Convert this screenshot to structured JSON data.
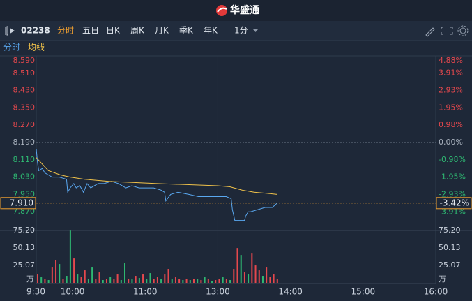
{
  "header": {
    "logo": "华盛通"
  },
  "toolbar": {
    "code": "02238",
    "tabs": [
      "分时",
      "五日",
      "日K",
      "周K",
      "月K",
      "季K",
      "年K"
    ],
    "interval": "1分"
  },
  "chart_data": [
    {
      "type": "line",
      "series": [
        {
          "name": "分时",
          "color": "#5aa8f0",
          "x": [
            0,
            1,
            2,
            5,
            7,
            10,
            13,
            19,
            25,
            26,
            28,
            31,
            33,
            36,
            39,
            42,
            45,
            51,
            56,
            62,
            68,
            74,
            79,
            85,
            91,
            97,
            103,
            106,
            107,
            111,
            117,
            126,
            134,
            143,
            149,
            152,
            157,
            161,
            162,
            164,
            169,
            172,
            173,
            175,
            177,
            183,
            189,
            195,
            199
          ],
          "values": [
            8.16,
            8.1,
            8.06,
            8.07,
            8.05,
            8.04,
            8.03,
            8.03,
            8.02,
            7.96,
            7.98,
            8.0,
            7.98,
            7.99,
            7.96,
            8.0,
            7.98,
            8.0,
            8.0,
            8.01,
            8.0,
            7.98,
            7.99,
            7.98,
            7.98,
            7.98,
            7.97,
            7.96,
            7.92,
            7.95,
            7.96,
            7.95,
            7.94,
            7.94,
            7.94,
            7.94,
            7.94,
            7.93,
            7.88,
            7.83,
            7.83,
            7.83,
            7.85,
            7.87,
            7.87,
            7.88,
            7.89,
            7.89,
            7.91
          ]
        },
        {
          "name": "均线",
          "color": "#f0c24a",
          "x": [
            0,
            5,
            10,
            20,
            28,
            40,
            60,
            100,
            150,
            160,
            170,
            180,
            190,
            199
          ],
          "values": [
            8.12,
            8.09,
            8.06,
            8.04,
            8.03,
            8.02,
            8.01,
            8.0,
            7.99,
            7.985,
            7.97,
            7.96,
            7.955,
            7.95
          ]
        }
      ],
      "xlim": [
        0,
        330
      ],
      "ylim": [
        7.79,
        8.59
      ],
      "yticks": [
        {
          "value": 8.59,
          "label": "8.590"
        },
        {
          "value": 8.51,
          "label": "8.510"
        },
        {
          "value": 8.43,
          "label": "8.430"
        },
        {
          "value": 8.35,
          "label": "8.350"
        },
        {
          "value": 8.27,
          "label": "8.270"
        },
        {
          "value": 8.19,
          "label": "8.190"
        },
        {
          "value": 8.11,
          "label": "8.110"
        },
        {
          "value": 8.03,
          "label": "8.030"
        },
        {
          "value": 7.95,
          "label": "7.950"
        },
        {
          "value": 7.87,
          "label": "7.870"
        }
      ],
      "y2lim": [
        -4.88,
        4.88
      ],
      "y2ticks": [
        {
          "value": 4.88,
          "label": "4.88%"
        },
        {
          "value": 3.91,
          "label": "3.91%"
        },
        {
          "value": 2.93,
          "label": "2.93%"
        },
        {
          "value": 1.95,
          "label": "1.95%"
        },
        {
          "value": 0.98,
          "label": "0.98%"
        },
        {
          "value": 0,
          "label": "0.00%"
        },
        {
          "value": -0.98,
          "label": "-0.98%"
        },
        {
          "value": -1.95,
          "label": "-1.95%"
        },
        {
          "value": -2.93,
          "label": "-2.93%"
        },
        {
          "value": -3.91,
          "label": "-3.91%"
        }
      ],
      "current": {
        "price": {
          "value": 7.91,
          "label": "7.910"
        },
        "change": {
          "value": -3.42,
          "label": "-3.42%"
        }
      }
    },
    {
      "type": "bar",
      "unit": "万",
      "x": [
        0,
        3,
        6,
        9,
        12,
        15,
        18,
        21,
        24,
        27,
        30,
        33,
        36,
        39,
        42,
        45,
        48,
        51,
        54,
        57,
        60,
        63,
        66,
        69,
        72,
        75,
        78,
        81,
        84,
        87,
        90,
        93,
        96,
        99,
        102,
        105,
        108,
        111,
        114,
        117,
        120,
        123,
        126,
        129,
        132,
        135,
        138,
        141,
        144,
        147,
        150,
        153,
        156,
        159,
        162,
        165,
        168,
        171,
        174,
        177,
        180,
        183,
        186,
        189,
        192,
        195,
        198
      ],
      "values": [
        12,
        8,
        5,
        4,
        22,
        33,
        27,
        6,
        10,
        75,
        35,
        12,
        8,
        18,
        6,
        22,
        5,
        15,
        4,
        6,
        8,
        5,
        12,
        4,
        29,
        6,
        5,
        10,
        7,
        12,
        5,
        14,
        6,
        8,
        5,
        12,
        20,
        6,
        8,
        5,
        4,
        6,
        4,
        5,
        6,
        4,
        8,
        5,
        3,
        4,
        6,
        8,
        5,
        4,
        20,
        50,
        40,
        15,
        12,
        43,
        25,
        18,
        10,
        22,
        8,
        12,
        6
      ],
      "colors": [
        "#e5484d",
        "#2eb872",
        "#e5484d",
        "#2eb872",
        "#e5484d",
        "#e5484d",
        "#2eb872",
        "#e5484d",
        "#2eb872",
        "#2eb872",
        "#e5484d",
        "#2eb872",
        "#e5484d",
        "#e5484d",
        "#2eb872",
        "#2eb872",
        "#e5484d",
        "#e5484d",
        "#2eb872",
        "#e5484d",
        "#2eb872",
        "#e5484d",
        "#e5484d",
        "#2eb872",
        "#2eb872",
        "#e5484d",
        "#2eb872",
        "#e5484d",
        "#2eb872",
        "#e5484d",
        "#2eb872",
        "#2eb872",
        "#e5484d",
        "#e5484d",
        "#2eb872",
        "#e5484d",
        "#e5484d",
        "#2eb872",
        "#e5484d",
        "#e5484d",
        "#2eb872",
        "#e5484d",
        "#2eb872",
        "#e5484d",
        "#2eb872",
        "#e5484d",
        "#2eb872",
        "#e5484d",
        "#2eb872",
        "#e5484d",
        "#e5484d",
        "#2eb872",
        "#e5484d",
        "#2eb872",
        "#e5484d",
        "#e5484d",
        "#2eb872",
        "#e5484d",
        "#2eb872",
        "#e5484d",
        "#e5484d",
        "#e5484d",
        "#2eb872",
        "#e5484d",
        "#e5484d",
        "#e5484d",
        "#e5484d"
      ],
      "xlim": [
        0,
        330
      ],
      "xticks": [
        {
          "value": 0,
          "label": "9:30"
        },
        {
          "value": 30,
          "label": "10:00"
        },
        {
          "value": 90,
          "label": "11:00"
        },
        {
          "value": 150,
          "label": "13:00"
        },
        {
          "value": 210,
          "label": "14:00"
        },
        {
          "value": 270,
          "label": "15:00"
        },
        {
          "value": 330,
          "label": "16:00"
        }
      ],
      "ylim": [
        0,
        75.2
      ],
      "yticks": [
        {
          "value": 75.2,
          "label": "75.20"
        },
        {
          "value": 50.13,
          "label": "50.13"
        },
        {
          "value": 25.07,
          "label": "25.07"
        }
      ]
    }
  ]
}
